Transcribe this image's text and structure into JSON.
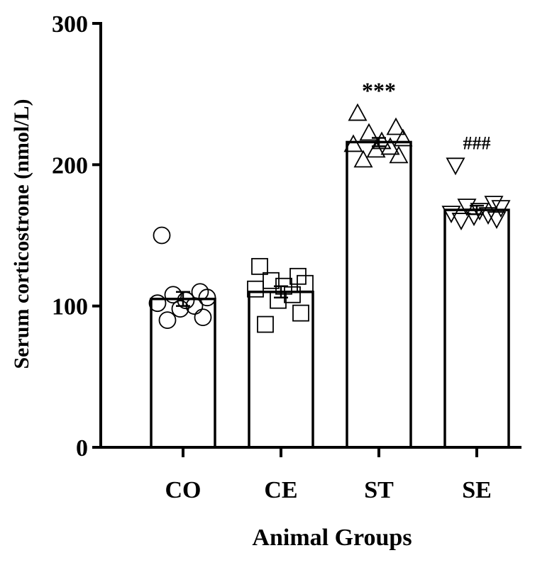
{
  "chart_data": {
    "type": "bar",
    "title": "",
    "xlabel": "Animal Groups",
    "ylabel": "Serum corticostrone (nmol/L)",
    "ylim": [
      0,
      300
    ],
    "yticks": [
      0,
      100,
      200,
      300
    ],
    "categories": [
      "CO",
      "CE",
      "ST",
      "SE"
    ],
    "values": [
      105,
      110,
      216,
      168
    ],
    "errors": [
      5,
      4,
      3,
      3
    ],
    "markers": [
      "circle",
      "square",
      "triangle-up",
      "triangle-down"
    ],
    "annotations": [
      "",
      "",
      "***",
      "###"
    ],
    "points": [
      [
        150,
        110,
        108,
        106,
        104,
        102,
        100,
        98,
        92,
        90
      ],
      [
        128,
        121,
        118,
        116,
        114,
        112,
        108,
        104,
        95,
        87
      ],
      [
        236,
        226,
        222,
        218,
        216,
        214,
        212,
        210,
        206,
        203
      ],
      [
        200,
        173,
        171,
        170,
        168,
        166,
        165,
        164,
        162,
        161
      ]
    ],
    "grid": false,
    "legend": "none"
  }
}
